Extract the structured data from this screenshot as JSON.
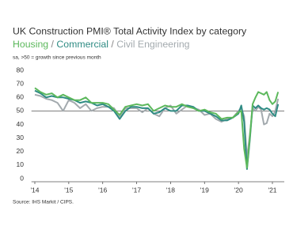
{
  "chart_data": {
    "type": "line",
    "title": "UK Construction PMI® Total Activity Index by category",
    "legend_separator": "/",
    "note": "sa, >50 = growth since previous month",
    "source": "Source: IHS Markit / CIPS.",
    "x": [
      2014,
      2014.167,
      2014.333,
      2014.5,
      2014.667,
      2014.833,
      2015,
      2015.167,
      2015.333,
      2015.5,
      2015.667,
      2015.833,
      2016,
      2016.167,
      2016.333,
      2016.5,
      2016.667,
      2016.833,
      2017,
      2017.167,
      2017.333,
      2017.5,
      2017.667,
      2017.833,
      2018,
      2018.167,
      2018.333,
      2018.5,
      2018.667,
      2018.833,
      2019,
      2019.167,
      2019.333,
      2019.5,
      2019.667,
      2019.833,
      2020,
      2020.083,
      2020.167,
      2020.25,
      2020.333,
      2020.417,
      2020.5,
      2020.583,
      2020.667,
      2020.75,
      2020.833,
      2020.917,
      2021,
      2021.083,
      2021.167
    ],
    "series": [
      {
        "name": "Housing",
        "color": "#5cb85c",
        "values": [
          67,
          64,
          62,
          63,
          60,
          62,
          60,
          58,
          58,
          60,
          56,
          56,
          56,
          55,
          51,
          47,
          53,
          54,
          55,
          54,
          55,
          50,
          52,
          54,
          53,
          53,
          55,
          53,
          52,
          50,
          51,
          49,
          48,
          44,
          45,
          45,
          49,
          50,
          22,
          8,
          30,
          55,
          60,
          64,
          63,
          62,
          64,
          58,
          55,
          57,
          64
        ]
      },
      {
        "name": "Commercial",
        "color": "#2e8b83",
        "values": [
          65,
          63,
          60,
          61,
          60,
          60,
          59,
          58,
          56,
          57,
          56,
          54,
          55,
          53,
          50,
          44,
          50,
          53,
          53,
          52,
          52,
          48,
          49,
          52,
          50,
          50,
          54,
          54,
          53,
          50,
          50,
          48,
          46,
          43,
          43,
          45,
          48,
          54,
          42,
          7,
          28,
          54,
          52,
          54,
          52,
          51,
          52,
          51,
          48,
          46,
          55
        ]
      },
      {
        "name": "Civil Engineering",
        "color": "#a3aaae",
        "values": [
          62,
          61,
          59,
          58,
          56,
          50,
          58,
          56,
          52,
          55,
          50,
          52,
          53,
          53,
          52,
          46,
          52,
          52,
          52,
          49,
          52,
          48,
          46,
          52,
          54,
          48,
          51,
          54,
          52,
          51,
          47,
          48,
          44,
          42,
          44,
          45,
          50,
          52,
          46,
          15,
          32,
          52,
          50,
          53,
          51,
          40,
          41,
          48,
          46,
          50,
          59
        ]
      }
    ],
    "xlim": [
      2013.9,
      2021.35
    ],
    "xticks": [
      {
        "value": 2014,
        "label": "'14"
      },
      {
        "value": 2015,
        "label": "'15"
      },
      {
        "value": 2016,
        "label": "'16"
      },
      {
        "value": 2017,
        "label": "'17"
      },
      {
        "value": 2018,
        "label": "'18"
      },
      {
        "value": 2019,
        "label": "'19"
      },
      {
        "value": 2020,
        "label": "'20"
      },
      {
        "value": 2021,
        "label": "'21"
      }
    ],
    "ylim": [
      0,
      80
    ],
    "yticks": [
      0,
      10,
      20,
      30,
      40,
      50,
      60,
      70,
      80
    ],
    "reference_line": 50
  }
}
